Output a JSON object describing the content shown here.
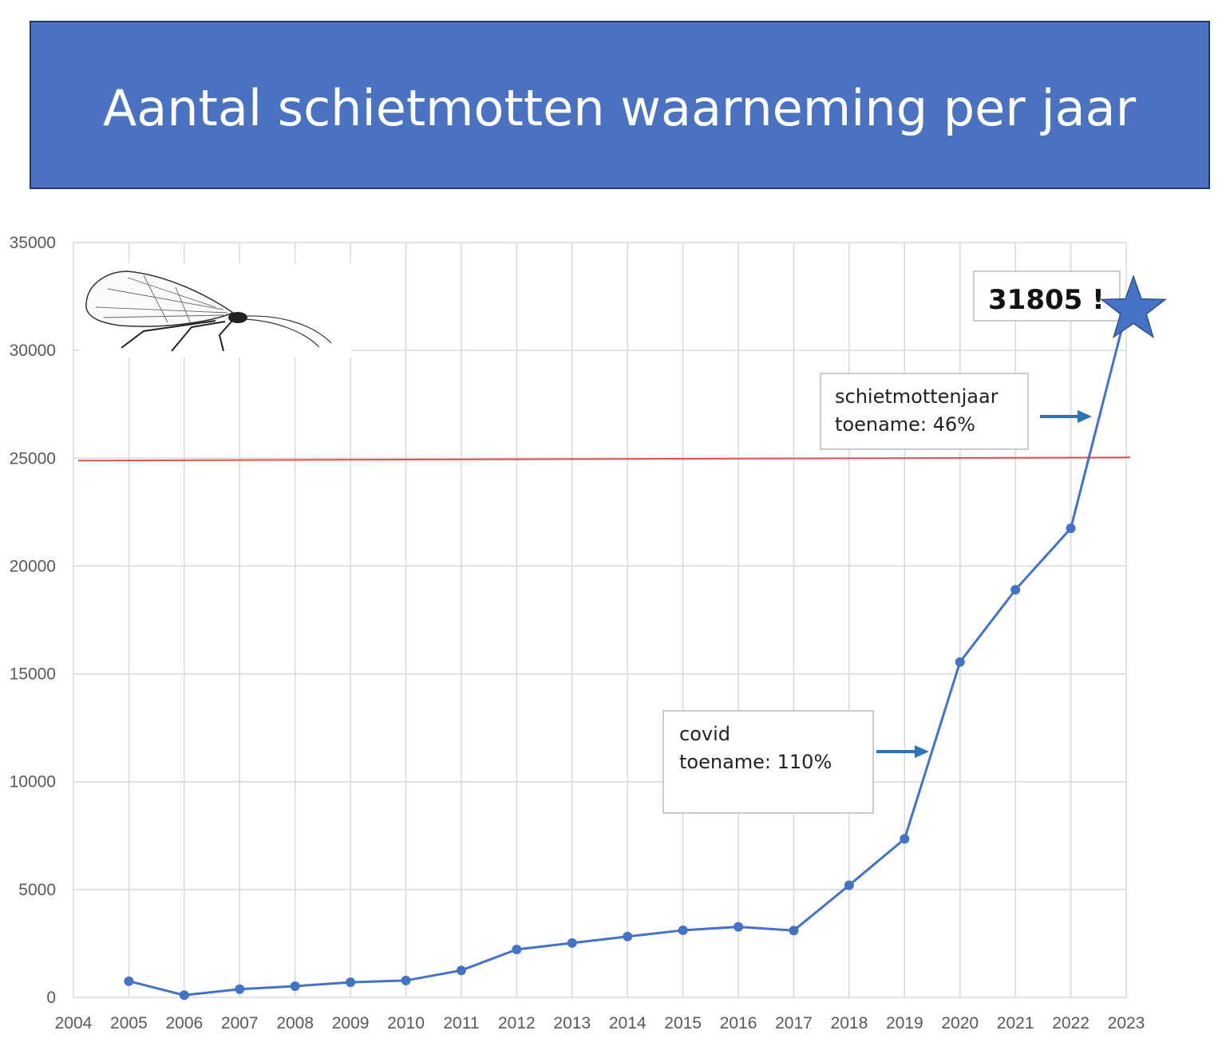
{
  "chart_data": {
    "type": "line",
    "title": "Aantal schietmotten waarneming per jaar",
    "xlabel": "",
    "ylabel": "",
    "x_ticks": [
      "2004",
      "2005",
      "2006",
      "2007",
      "2008",
      "2009",
      "2010",
      "2011",
      "2012",
      "2013",
      "2014",
      "2015",
      "2016",
      "2017",
      "2018",
      "2019",
      "2020",
      "2021",
      "2022",
      "2023"
    ],
    "y_ticks": [
      "0",
      "5000",
      "10000",
      "15000",
      "20000",
      "25000",
      "30000",
      "35000"
    ],
    "xlim": [
      2004,
      2023
    ],
    "ylim": [
      0,
      35000
    ],
    "grid": true,
    "series": [
      {
        "color": "#4472c4",
        "x": [
          2005,
          2006,
          2007,
          2008,
          2009,
          2010,
          2011,
          2012,
          2013,
          2014,
          2015,
          2016,
          2017,
          2018,
          2019,
          2020,
          2021,
          2022,
          2023
        ],
        "values": [
          750,
          100,
          380,
          520,
          700,
          780,
          1250,
          2220,
          2520,
          2820,
          3110,
          3270,
          3100,
          5200,
          7350,
          15550,
          18900,
          21750,
          31805
        ]
      }
    ],
    "reference_line": {
      "value": 25000,
      "color": "#e05050"
    },
    "annotations": [
      {
        "label": "31805 !",
        "marker": "star-icon"
      },
      {
        "line1": "schietmottenjaar",
        "line2": "toename: 46%",
        "arrow_color": "#2e74b5"
      },
      {
        "line1": "covid",
        "line2": "toename: 110%",
        "arrow_color": "#2e74b5"
      }
    ],
    "title_bg": "#4a72c0",
    "illustration": "caddisfly-drawing"
  }
}
